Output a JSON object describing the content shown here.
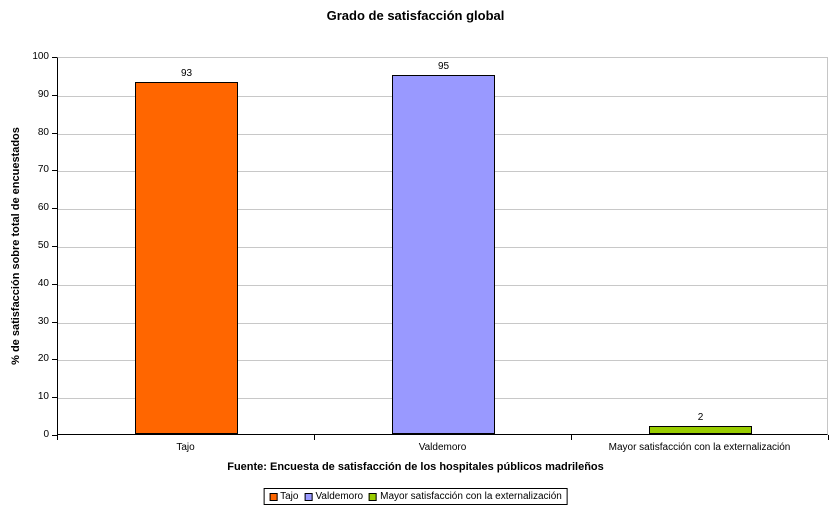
{
  "chart_data": {
    "type": "bar",
    "title": "Grado de satisfacción global",
    "ylabel": "% de satisfacción sobre total de encuestados",
    "xlabel": "",
    "categories": [
      "Tajo",
      "Valdemoro",
      "Mayor satisfacción con la externalización"
    ],
    "values": [
      93,
      95,
      2
    ],
    "colors": [
      "#FF6600",
      "#9999FF",
      "#99CC00"
    ],
    "legend": [
      "Tajo",
      "Valdemoro",
      "Mayor satisfacción con la externalización"
    ],
    "ylim": [
      0,
      100
    ],
    "ytick_step": 10,
    "grid": true,
    "legend_position": "bottom",
    "data_labels_shown": true,
    "source": "Fuente: Encuesta de satisfacción de los hospitales públicos madrileños"
  }
}
